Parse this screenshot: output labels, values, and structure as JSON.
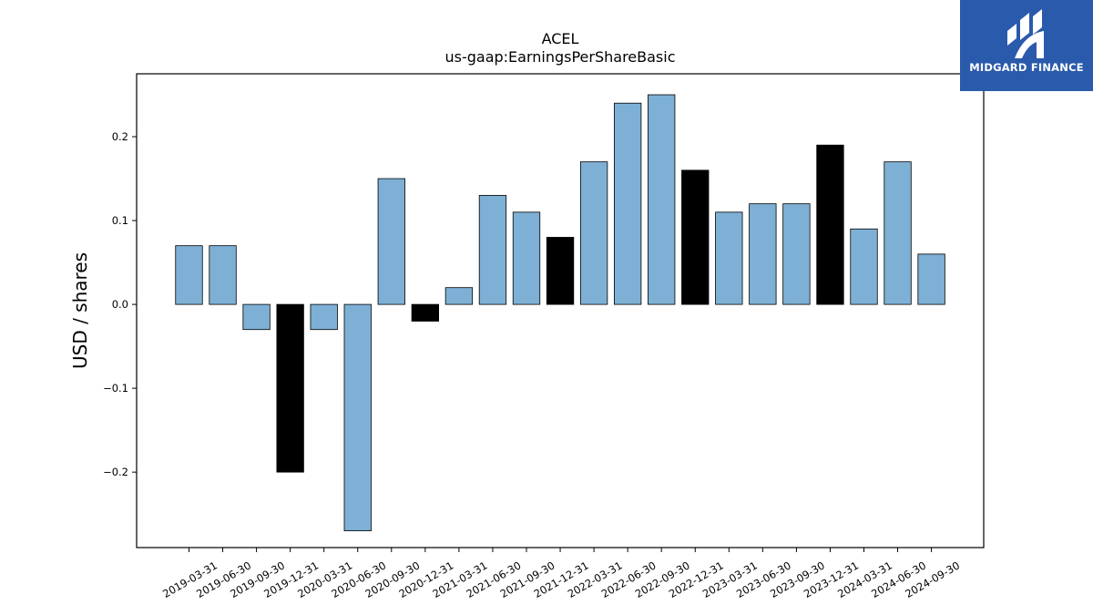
{
  "chart_data": {
    "type": "bar",
    "title": "ACEL",
    "subtitle": "us-gaap:EarningsPerShareBasic",
    "ylabel": "USD / shares",
    "xlabel": "",
    "ylim": [
      -0.29,
      0.275
    ],
    "yticks": [
      -0.2,
      -0.1,
      0.0,
      0.1,
      0.2
    ],
    "ytick_labels": [
      "−0.2",
      "−0.1",
      "0.0",
      "0.1",
      "0.2"
    ],
    "categories": [
      "2019-03-31",
      "2019-06-30",
      "2019-09-30",
      "2019-12-31",
      "2020-03-31",
      "2020-06-30",
      "2020-09-30",
      "2020-12-31",
      "2021-03-31",
      "2021-06-30",
      "2021-09-30",
      "2021-12-31",
      "2022-03-31",
      "2022-06-30",
      "2022-09-30",
      "2022-12-31",
      "2023-03-31",
      "2023-06-30",
      "2023-09-30",
      "2023-12-31",
      "2024-03-31",
      "2024-06-30",
      "2024-09-30"
    ],
    "values": [
      0.07,
      0.07,
      -0.03,
      -0.2,
      -0.03,
      -0.27,
      0.15,
      -0.02,
      0.02,
      0.13,
      0.11,
      0.08,
      0.17,
      0.24,
      0.25,
      0.16,
      0.11,
      0.12,
      0.12,
      0.19,
      0.09,
      0.17,
      0.06
    ],
    "bar_colors": [
      "#7eb0d5",
      "#7eb0d5",
      "#7eb0d5",
      "#000000",
      "#7eb0d5",
      "#7eb0d5",
      "#7eb0d5",
      "#000000",
      "#7eb0d5",
      "#7eb0d5",
      "#7eb0d5",
      "#000000",
      "#7eb0d5",
      "#7eb0d5",
      "#7eb0d5",
      "#000000",
      "#7eb0d5",
      "#7eb0d5",
      "#7eb0d5",
      "#000000",
      "#7eb0d5",
      "#7eb0d5",
      "#7eb0d5"
    ],
    "grid": false,
    "legend": "none"
  },
  "logo": {
    "brand": "MIDGARD FINANCE",
    "background": "#2a5aab",
    "icon": "midgard-logo-icon"
  }
}
